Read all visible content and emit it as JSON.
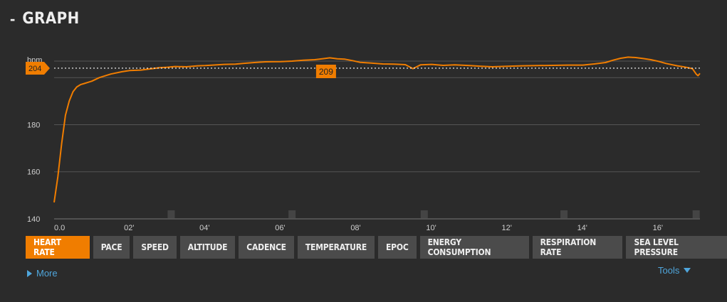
{
  "header": {
    "collapse_symbol": "-",
    "title": "GRAPH"
  },
  "chart_data": {
    "type": "line",
    "ylabel": "bpm",
    "ylim": [
      140,
      207
    ],
    "yticks": [
      140,
      160,
      180
    ],
    "xlim": [
      0,
      17.1
    ],
    "xticks": [
      {
        "v": 0,
        "label": "0.0"
      },
      {
        "v": 2,
        "label": "02'"
      },
      {
        "v": 4,
        "label": "04'"
      },
      {
        "v": 6,
        "label": "06'"
      },
      {
        "v": 8,
        "label": "08'"
      },
      {
        "v": 10,
        "label": "10'"
      },
      {
        "v": 12,
        "label": "12'"
      },
      {
        "v": 14,
        "label": "14'"
      },
      {
        "v": 16,
        "label": "16'"
      }
    ],
    "average": {
      "value": 204,
      "label": "204"
    },
    "max_marker": {
      "x": 7.2,
      "value": 209,
      "label": "209"
    },
    "lap_markers": [
      3.1,
      6.3,
      9.8,
      13.5,
      17.0
    ],
    "series": [
      {
        "color": "#f07d00",
        "points": [
          [
            0,
            147
          ],
          [
            0.1,
            158
          ],
          [
            0.2,
            172
          ],
          [
            0.3,
            184
          ],
          [
            0.4,
            190
          ],
          [
            0.5,
            194
          ],
          [
            0.6,
            196
          ],
          [
            0.7,
            197
          ],
          [
            0.8,
            197.5
          ],
          [
            1.0,
            198.5
          ],
          [
            1.2,
            200
          ],
          [
            1.5,
            201.5
          ],
          [
            1.8,
            202.5
          ],
          [
            2.0,
            203
          ],
          [
            2.3,
            203.2
          ],
          [
            2.5,
            203.6
          ],
          [
            2.8,
            204.2
          ],
          [
            3.0,
            204.4
          ],
          [
            3.2,
            204.7
          ],
          [
            3.5,
            204.6
          ],
          [
            3.8,
            205
          ],
          [
            4.0,
            205.1
          ],
          [
            4.2,
            205.3
          ],
          [
            4.5,
            205.6
          ],
          [
            4.8,
            205.7
          ],
          [
            5.0,
            206
          ],
          [
            5.3,
            206.4
          ],
          [
            5.6,
            206.7
          ],
          [
            6.0,
            206.8
          ],
          [
            6.3,
            207
          ],
          [
            6.6,
            207.4
          ],
          [
            6.9,
            207.6
          ],
          [
            7.1,
            208
          ],
          [
            7.3,
            208.4
          ],
          [
            7.5,
            208
          ],
          [
            7.7,
            207.8
          ],
          [
            7.9,
            207.2
          ],
          [
            8.1,
            206.5
          ],
          [
            8.4,
            206.2
          ],
          [
            8.7,
            205.8
          ],
          [
            9.0,
            205.7
          ],
          [
            9.3,
            205.5
          ],
          [
            9.5,
            203.8
          ],
          [
            9.7,
            205.4
          ],
          [
            10.0,
            205.6
          ],
          [
            10.3,
            205.2
          ],
          [
            10.6,
            205.4
          ],
          [
            11.0,
            205.1
          ],
          [
            11.3,
            204.8
          ],
          [
            11.6,
            204.6
          ],
          [
            12.0,
            204.8
          ],
          [
            12.4,
            205
          ],
          [
            12.8,
            205.1
          ],
          [
            13.2,
            205.2
          ],
          [
            13.6,
            205.3
          ],
          [
            14.0,
            205.3
          ],
          [
            14.3,
            205.8
          ],
          [
            14.6,
            206.4
          ],
          [
            14.8,
            207.4
          ],
          [
            15.0,
            208.2
          ],
          [
            15.2,
            208.7
          ],
          [
            15.4,
            208.5
          ],
          [
            15.6,
            208.1
          ],
          [
            15.8,
            207.6
          ],
          [
            16.0,
            206.9
          ],
          [
            16.2,
            206
          ],
          [
            16.5,
            205
          ],
          [
            16.7,
            204.5
          ],
          [
            16.9,
            203.8
          ],
          [
            17.0,
            201.5
          ],
          [
            17.05,
            200.8
          ],
          [
            17.1,
            201.8
          ]
        ]
      }
    ]
  },
  "buttons": [
    {
      "label": "HEART RATE",
      "active": true
    },
    {
      "label": "PACE",
      "active": false
    },
    {
      "label": "SPEED",
      "active": false
    },
    {
      "label": "ALTITUDE",
      "active": false
    },
    {
      "label": "CADENCE",
      "active": false
    },
    {
      "label": "TEMPERATURE",
      "active": false
    },
    {
      "label": "EPOC",
      "active": false
    },
    {
      "label": "ENERGY CONSUMPTION",
      "active": false
    },
    {
      "label": "RESPIRATION RATE",
      "active": false
    },
    {
      "label": "SEA LEVEL PRESSURE",
      "active": false
    }
  ],
  "more": {
    "label": "More",
    "icon": "triangle-right-icon"
  },
  "tools": {
    "label": "Tools",
    "icon": "triangle-down-icon"
  }
}
